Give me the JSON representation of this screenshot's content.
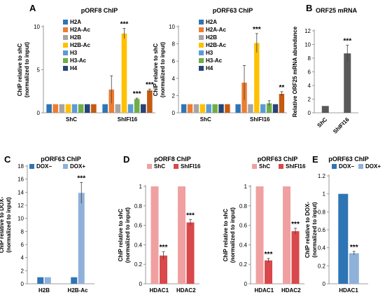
{
  "chart_data": [
    {
      "panel": "A",
      "type": "bar",
      "title": "pORF8 ChIP",
      "ylabel": [
        "ChIP relative to shC",
        "(normalized to input)"
      ],
      "ylim": [
        0,
        10
      ],
      "yticks": [
        0,
        5,
        10
      ],
      "categories": [
        "ShC",
        "ShIFI16"
      ],
      "series": [
        {
          "name": "H2A",
          "color": "#2e75b6",
          "values": [
            1,
            1
          ],
          "errors": [
            0,
            0
          ]
        },
        {
          "name": "H2A-Ac",
          "color": "#ed7d31",
          "values": [
            1,
            2.7
          ],
          "errors": [
            0,
            1.6
          ]
        },
        {
          "name": "H2B",
          "color": "#a5a5a5",
          "values": [
            1,
            1
          ],
          "errors": [
            0,
            0
          ]
        },
        {
          "name": "H2B-Ac",
          "color": "#ffc000",
          "values": [
            1,
            9.2
          ],
          "errors": [
            0,
            0.6
          ]
        },
        {
          "name": "H3",
          "color": "#5b9bd5",
          "values": [
            1,
            1
          ],
          "errors": [
            0,
            0
          ]
        },
        {
          "name": "H3-Ac",
          "color": "#70ad47",
          "values": [
            1,
            1.6
          ],
          "errors": [
            0,
            0.1
          ]
        },
        {
          "name": "H4",
          "color": "#264478",
          "values": [
            1,
            1
          ],
          "errors": [
            0,
            0
          ]
        },
        {
          "name": "",
          "color": "#c55a11",
          "values": [
            1,
            2.6
          ],
          "errors": [
            0,
            0.15
          ]
        }
      ],
      "annotations": [
        {
          "category": 1,
          "series": 3,
          "text": "***"
        },
        {
          "category": 1,
          "series": 5,
          "text": "***"
        },
        {
          "category": 1,
          "series": 7,
          "text": "***"
        }
      ]
    },
    {
      "panel": "",
      "type": "bar",
      "title": "pORF63 ChIP",
      "ylabel": [
        "ChIP relative to shC",
        "(normalized to input)"
      ],
      "ylim": [
        0,
        10
      ],
      "yticks": [
        0,
        2,
        4,
        6,
        8,
        10
      ],
      "categories": [
        "ShC",
        "ShIFI16"
      ],
      "series": [
        {
          "name": "H2A",
          "color": "#2e75b6",
          "values": [
            1,
            1
          ],
          "errors": [
            0,
            0
          ]
        },
        {
          "name": "H2A-Ac",
          "color": "#ed7d31",
          "values": [
            1,
            3.5
          ],
          "errors": [
            0,
            2.0
          ]
        },
        {
          "name": "H2B",
          "color": "#a5a5a5",
          "values": [
            1,
            1
          ],
          "errors": [
            0,
            0
          ]
        },
        {
          "name": "H2B-Ac",
          "color": "#ffc000",
          "values": [
            1,
            8.1
          ],
          "errors": [
            0,
            1.1
          ]
        },
        {
          "name": "H3",
          "color": "#5b9bd5",
          "values": [
            1,
            1
          ],
          "errors": [
            0,
            0
          ]
        },
        {
          "name": "H3-Ac",
          "color": "#70ad47",
          "values": [
            1,
            1.1
          ],
          "errors": [
            0,
            0.3
          ]
        },
        {
          "name": "H4",
          "color": "#264478",
          "values": [
            1,
            1
          ],
          "errors": [
            0,
            0
          ]
        },
        {
          "name": "",
          "color": "#c55a11",
          "values": [
            1,
            2.2
          ],
          "errors": [
            0,
            0.25
          ]
        }
      ],
      "annotations": [
        {
          "category": 1,
          "series": 3,
          "text": "***"
        },
        {
          "category": 1,
          "series": 7,
          "text": "**"
        }
      ]
    },
    {
      "panel": "B",
      "type": "bar",
      "title": "ORF25 mRNA",
      "ylabel": [
        "Relative ORF25 mRNA abundance"
      ],
      "ylim": [
        0,
        12
      ],
      "yticks": [
        0,
        2,
        4,
        6,
        8,
        10,
        12
      ],
      "categories": [
        "ShC",
        "ShIFI16"
      ],
      "series": [
        {
          "name": "",
          "color": "#595959",
          "values": [
            1,
            8.7
          ],
          "errors": [
            0,
            1.2
          ]
        }
      ],
      "annotations": [
        {
          "category": 1,
          "series": 0,
          "text": "***"
        }
      ]
    },
    {
      "panel": "C",
      "type": "bar",
      "title": "pORF63 ChIP",
      "ylabel": [
        "ChIP relative to DOX-",
        "(normalized to input)"
      ],
      "ylim": [
        0,
        18
      ],
      "yticks": [
        0,
        2,
        4,
        6,
        8,
        10,
        12,
        14,
        16,
        18
      ],
      "categories": [
        "H2B",
        "H2B-Ac"
      ],
      "series": [
        {
          "name": "DOX−",
          "color": "#2e75b6",
          "values": [
            1,
            1
          ],
          "errors": [
            0,
            0
          ]
        },
        {
          "name": "DOX+",
          "color": "#8fb0d9",
          "values": [
            1,
            13.9
          ],
          "errors": [
            0,
            1.6
          ]
        }
      ],
      "annotations": [
        {
          "category": 1,
          "series": 1,
          "text": "***"
        }
      ]
    },
    {
      "panel": "D",
      "type": "bar",
      "title": "pORF8 ChIP",
      "ylabel": [
        "ChIP relative to shC",
        "(normalized to input)"
      ],
      "ylim": [
        0,
        1.0
      ],
      "yticks": [
        0,
        0.2,
        0.4,
        0.6,
        0.8,
        1
      ],
      "categories": [
        "HDAC1",
        "HDAC2"
      ],
      "series": [
        {
          "name": "ShC",
          "color": "#f0a0a0",
          "values": [
            1,
            1
          ],
          "errors": [
            0,
            0
          ]
        },
        {
          "name": "ShIFI16",
          "color": "#d9484a",
          "values": [
            0.29,
            0.63
          ],
          "errors": [
            0.04,
            0.03
          ]
        }
      ],
      "annotations": [
        {
          "category": 0,
          "series": 1,
          "text": "***"
        },
        {
          "category": 1,
          "series": 1,
          "text": "***"
        }
      ]
    },
    {
      "panel": "",
      "type": "bar",
      "title": "pORF63 ChIP",
      "ylabel": [
        "ChIP relative to shC",
        "(normalized to input)"
      ],
      "ylim": [
        0,
        1.0
      ],
      "yticks": [
        0,
        0.2,
        0.4,
        0.6,
        0.8,
        1
      ],
      "categories": [
        "HDAC1",
        "HDAC2"
      ],
      "series": [
        {
          "name": "ShC",
          "color": "#f0a0a0",
          "values": [
            1,
            1
          ],
          "errors": [
            0,
            0
          ]
        },
        {
          "name": "ShIFI16",
          "color": "#d9484a",
          "values": [
            0.24,
            0.54
          ],
          "errors": [
            0.02,
            0.03
          ]
        }
      ],
      "annotations": [
        {
          "category": 0,
          "series": 1,
          "text": "***"
        },
        {
          "category": 1,
          "series": 1,
          "text": "***"
        }
      ]
    },
    {
      "panel": "E",
      "type": "bar",
      "title": "pORF63 ChIP",
      "ylabel": [
        "ChIP relative to DOX-",
        "(normalized to input)"
      ],
      "ylim": [
        0,
        1.2
      ],
      "yticks": [
        0,
        0.2,
        0.4,
        0.6,
        0.8,
        1,
        1.2
      ],
      "categories": [
        "HDAC1"
      ],
      "series": [
        {
          "name": "DOX−",
          "color": "#2e75b6",
          "values": [
            1
          ],
          "errors": [
            0
          ]
        },
        {
          "name": "DOX+",
          "color": "#8fb0d9",
          "values": [
            0.34
          ],
          "errors": [
            0.02
          ]
        }
      ],
      "annotations": [
        {
          "category": 0,
          "series": 1,
          "text": "***"
        }
      ]
    }
  ]
}
